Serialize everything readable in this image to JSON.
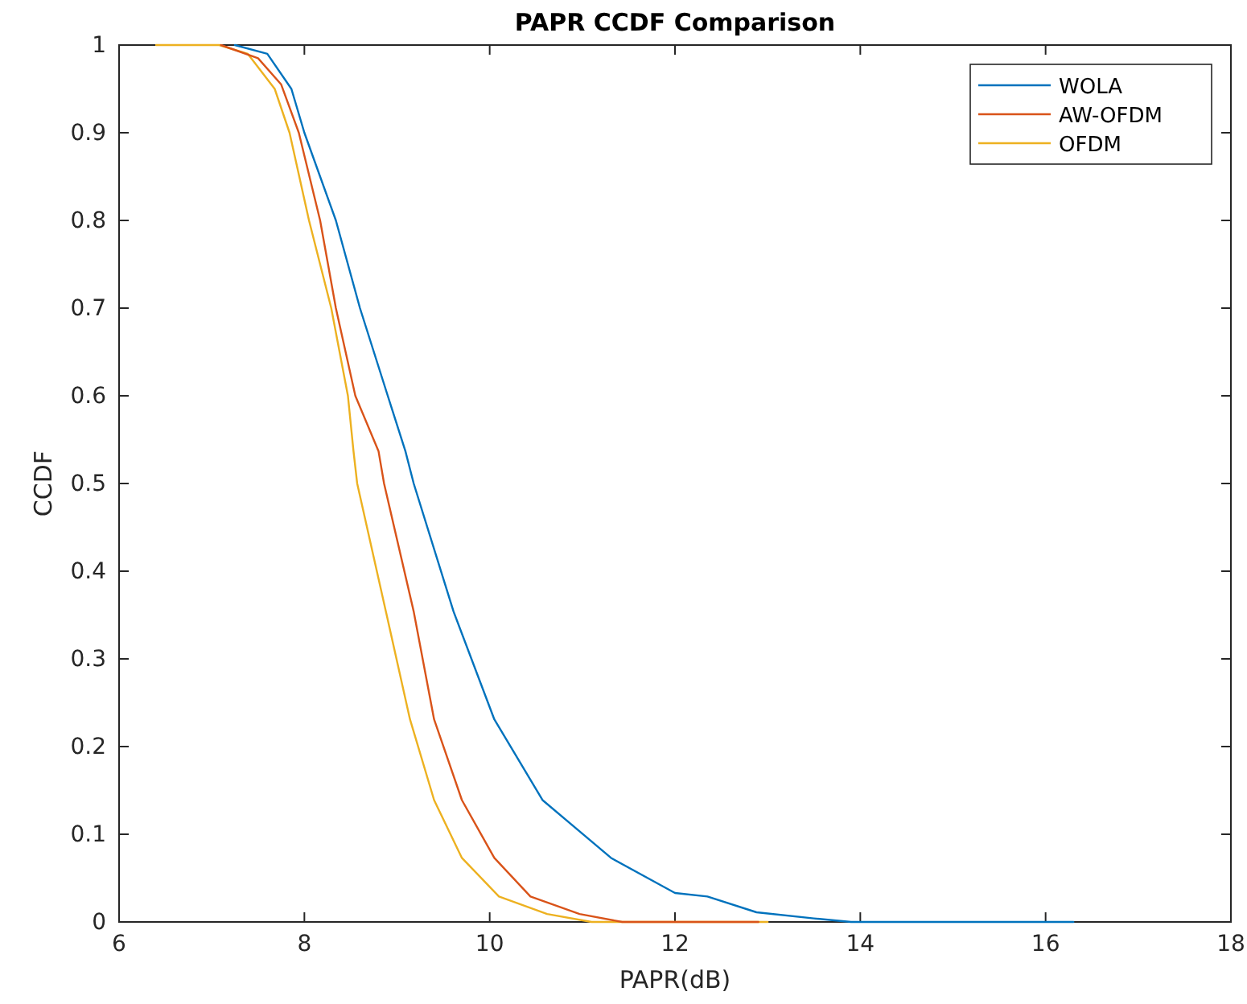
{
  "chart_data": {
    "type": "line",
    "title": "PAPR CCDF Comparison",
    "xlabel": "PAPR(dB)",
    "ylabel": "CCDF",
    "xlim": [
      6,
      18
    ],
    "xticks": [
      6,
      8,
      10,
      12,
      14,
      16,
      18
    ],
    "ylim": [
      0,
      1
    ],
    "yticks": [
      0,
      0.1,
      0.2,
      0.3,
      0.4,
      0.5,
      0.6,
      0.7,
      0.8,
      0.9,
      1
    ],
    "grid": false,
    "legend": "top right",
    "marker": "none",
    "line_style": "solid",
    "series": [
      {
        "name": "WOLA",
        "color": "#0072bd",
        "x": [
          7.25,
          7.6,
          7.86,
          8.0,
          8.34,
          8.6,
          8.9,
          9.09,
          9.18,
          9.61,
          10.05,
          10.57,
          11.31,
          12.0,
          12.35,
          12.88,
          13.5,
          13.9,
          16.3
        ],
        "values": [
          1,
          0.99,
          0.95,
          0.9,
          0.8,
          0.7,
          0.6,
          0.537,
          0.5,
          0.354,
          0.231,
          0.139,
          0.073,
          0.033,
          0.029,
          0.011,
          0.004,
          0,
          0
        ]
      },
      {
        "name": "AW-OFDM",
        "color": "#d95319",
        "x": [
          7.1,
          7.5,
          7.75,
          7.94,
          8.17,
          8.34,
          8.55,
          8.8,
          8.86,
          9.18,
          9.4,
          9.7,
          10.05,
          10.44,
          10.97,
          11.43,
          12.9
        ],
        "values": [
          1,
          0.985,
          0.955,
          0.9,
          0.8,
          0.7,
          0.6,
          0.537,
          0.5,
          0.354,
          0.231,
          0.139,
          0.073,
          0.029,
          0.009,
          0,
          0
        ]
      },
      {
        "name": "OFDM",
        "color": "#edb120",
        "x": [
          6.4,
          7.08,
          7.39,
          7.68,
          7.84,
          8.05,
          8.29,
          8.47,
          8.53,
          8.57,
          8.88,
          9.14,
          9.4,
          9.7,
          10.1,
          10.62,
          11.1,
          13.0
        ],
        "values": [
          1,
          1,
          0.99,
          0.95,
          0.9,
          0.8,
          0.7,
          0.6,
          0.537,
          0.5,
          0.354,
          0.231,
          0.139,
          0.073,
          0.029,
          0.009,
          0,
          0
        ]
      }
    ]
  }
}
